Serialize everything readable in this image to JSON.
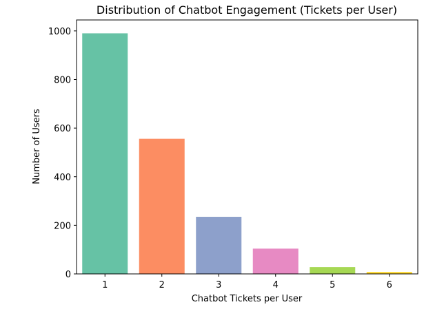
{
  "chart_data": {
    "type": "bar",
    "title": "Distribution of Chatbot Engagement (Tickets per User)",
    "xlabel": "Chatbot Tickets per User",
    "ylabel": "Number of Users",
    "categories": [
      "1",
      "2",
      "3",
      "4",
      "5",
      "6"
    ],
    "values": [
      990,
      556,
      235,
      104,
      28,
      8
    ],
    "colors": [
      "#66c2a5",
      "#fc8d62",
      "#8da0cb",
      "#e78ac3",
      "#a6d854",
      "#ffd92f"
    ],
    "ylim": [
      0,
      1045
    ],
    "yticks": [
      0,
      200,
      400,
      600,
      800,
      1000
    ],
    "grid": false,
    "legend": "none"
  }
}
